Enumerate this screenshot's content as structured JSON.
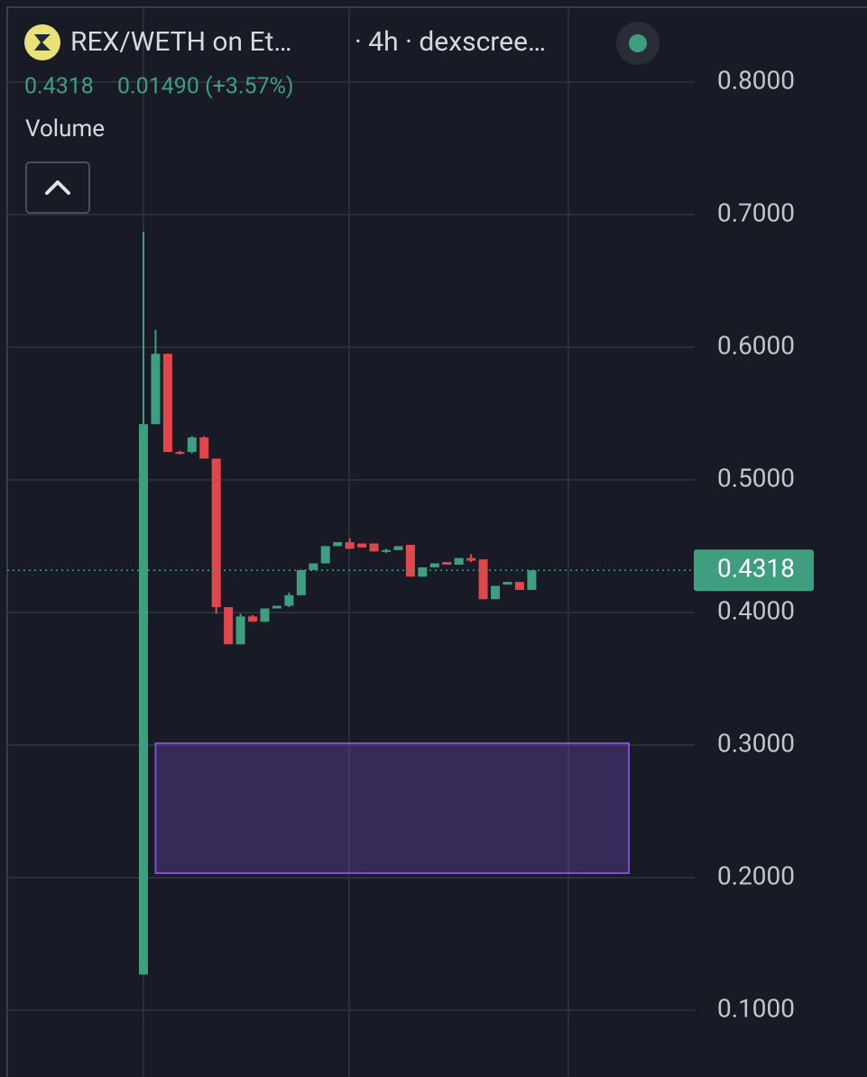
{
  "chart_data": {
    "type": "candlestick",
    "title": "REX/WETH on Et…",
    "subtitle": "· 4h · dexscree…",
    "last_price": 0.4318,
    "change_label": "0.01490 (+3.57%)",
    "volume_label": "Volume",
    "up_color": "#3f9d80",
    "down_color": "#e0474c",
    "grid": true,
    "ylim": [
      0.0497,
      0.855
    ],
    "yticks": [
      {
        "value": 0.8,
        "label": "0.8000"
      },
      {
        "value": 0.7,
        "label": "0.7000"
      },
      {
        "value": 0.6,
        "label": "0.6000"
      },
      {
        "value": 0.5,
        "label": "0.5000"
      },
      {
        "value": 0.4,
        "label": "0.4000"
      },
      {
        "value": 0.3,
        "label": "0.3000"
      },
      {
        "value": 0.2,
        "label": "0.2000"
      },
      {
        "value": 0.1,
        "label": "0.1000"
      }
    ],
    "candles": [
      {
        "open": 0.127,
        "high": 0.687,
        "low": 0.127,
        "close": 0.542
      },
      {
        "open": 0.542,
        "high": 0.613,
        "low": 0.542,
        "close": 0.595
      },
      {
        "open": 0.595,
        "high": 0.595,
        "low": 0.521,
        "close": 0.521
      },
      {
        "open": 0.521,
        "high": 0.522,
        "low": 0.519,
        "close": 0.52
      },
      {
        "open": 0.521,
        "high": 0.533,
        "low": 0.52,
        "close": 0.532
      },
      {
        "open": 0.532,
        "high": 0.533,
        "low": 0.516,
        "close": 0.516
      },
      {
        "open": 0.516,
        "high": 0.516,
        "low": 0.399,
        "close": 0.404
      },
      {
        "open": 0.404,
        "high": 0.404,
        "low": 0.376,
        "close": 0.376
      },
      {
        "open": 0.376,
        "high": 0.399,
        "low": 0.376,
        "close": 0.397
      },
      {
        "open": 0.397,
        "high": 0.398,
        "low": 0.393,
        "close": 0.393
      },
      {
        "open": 0.393,
        "high": 0.403,
        "low": 0.393,
        "close": 0.403
      },
      {
        "open": 0.403,
        "high": 0.405,
        "low": 0.403,
        "close": 0.405
      },
      {
        "open": 0.405,
        "high": 0.415,
        "low": 0.404,
        "close": 0.413
      },
      {
        "open": 0.413,
        "high": 0.432,
        "low": 0.413,
        "close": 0.432
      },
      {
        "open": 0.432,
        "high": 0.437,
        "low": 0.432,
        "close": 0.437
      },
      {
        "open": 0.437,
        "high": 0.45,
        "low": 0.437,
        "close": 0.45
      },
      {
        "open": 0.45,
        "high": 0.453,
        "low": 0.45,
        "close": 0.453
      },
      {
        "open": 0.453,
        "high": 0.456,
        "low": 0.448,
        "close": 0.448
      },
      {
        "open": 0.452,
        "high": 0.452,
        "low": 0.449,
        "close": 0.449
      },
      {
        "open": 0.452,
        "high": 0.452,
        "low": 0.446,
        "close": 0.446
      },
      {
        "open": 0.446,
        "high": 0.448,
        "low": 0.445,
        "close": 0.447
      },
      {
        "open": 0.447,
        "high": 0.45,
        "low": 0.447,
        "close": 0.45
      },
      {
        "open": 0.451,
        "high": 0.451,
        "low": 0.427,
        "close": 0.427
      },
      {
        "open": 0.427,
        "high": 0.434,
        "low": 0.427,
        "close": 0.434
      },
      {
        "open": 0.434,
        "high": 0.437,
        "low": 0.434,
        "close": 0.437
      },
      {
        "open": 0.438,
        "high": 0.438,
        "low": 0.436,
        "close": 0.436
      },
      {
        "open": 0.436,
        "high": 0.441,
        "low": 0.436,
        "close": 0.441
      },
      {
        "open": 0.441,
        "high": 0.444,
        "low": 0.438,
        "close": 0.439
      },
      {
        "open": 0.44,
        "high": 0.44,
        "low": 0.41,
        "close": 0.41
      },
      {
        "open": 0.41,
        "high": 0.42,
        "low": 0.41,
        "close": 0.42
      },
      {
        "open": 0.421,
        "high": 0.423,
        "low": 0.421,
        "close": 0.423
      },
      {
        "open": 0.423,
        "high": 0.423,
        "low": 0.417,
        "close": 0.417
      },
      {
        "open": 0.417,
        "high": 0.4318,
        "low": 0.417,
        "close": 0.4318
      }
    ],
    "zone": {
      "from": 1,
      "to": 40,
      "low": 0.2034,
      "high": 0.3014,
      "color": "#7b4fd0"
    }
  }
}
